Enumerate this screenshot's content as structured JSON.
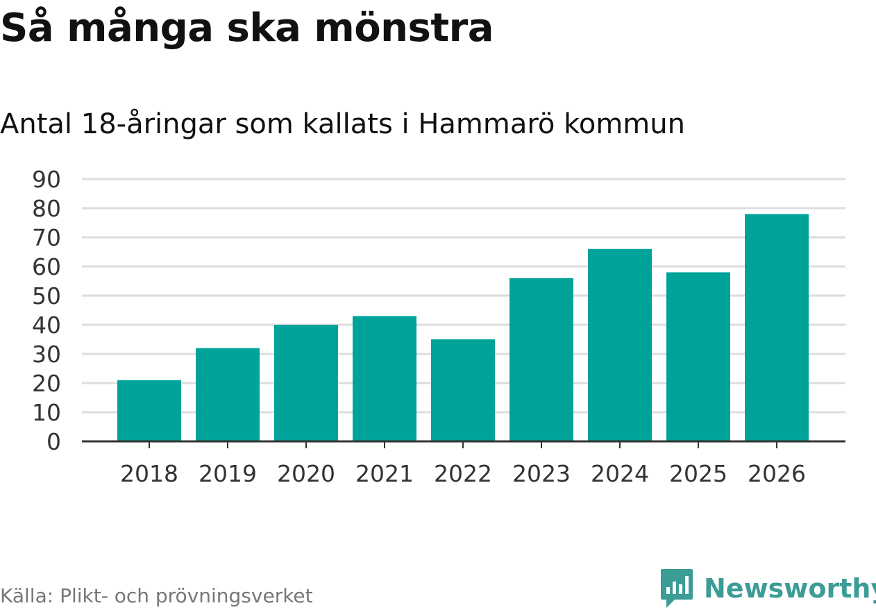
{
  "header": {
    "title": "Så många ska mönstra",
    "subtitle": "Antal 18-åringar som kallats i Hammarö kommun"
  },
  "footer": {
    "source": "Källa: Plikt- och prövningsverket",
    "brand": "Newsworthy",
    "logo_icon": "bar-chart-speech-bubble-icon"
  },
  "colors": {
    "bar": "#00a39a",
    "grid": "#dddddd",
    "axis": "#333333",
    "brand": "#3c9c96"
  },
  "chart_data": {
    "type": "bar",
    "title": "Så många ska mönstra",
    "subtitle": "Antal 18-åringar som kallats i Hammarö kommun",
    "xlabel": "",
    "ylabel": "",
    "categories": [
      "2018",
      "2019",
      "2020",
      "2021",
      "2022",
      "2023",
      "2024",
      "2025",
      "2026"
    ],
    "values": [
      21,
      32,
      40,
      43,
      35,
      56,
      66,
      58,
      78
    ],
    "ylim": [
      0,
      90
    ],
    "yticks": [
      0,
      10,
      20,
      30,
      40,
      50,
      60,
      70,
      80,
      90
    ],
    "grid": true,
    "legend": "none"
  }
}
